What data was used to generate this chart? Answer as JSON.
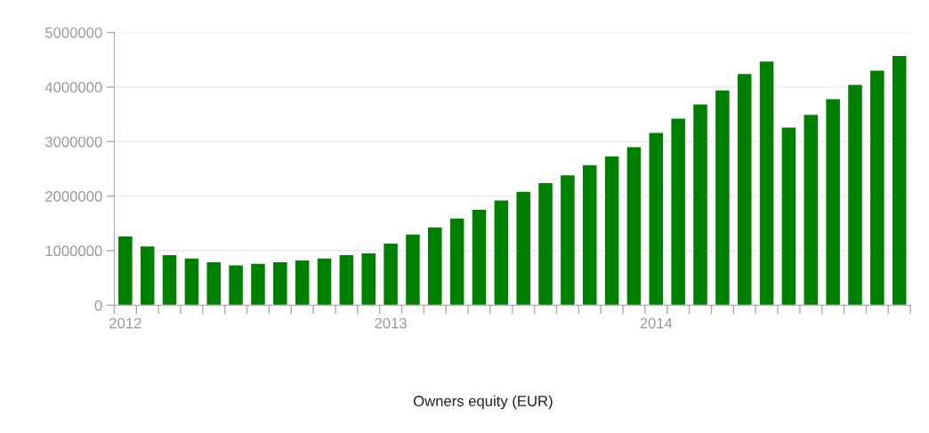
{
  "chart_data": {
    "type": "bar",
    "annotations": [
      "Owners equity (EUR)"
    ],
    "categories": [
      "2012",
      null,
      null,
      null,
      null,
      null,
      null,
      null,
      null,
      null,
      null,
      null,
      "2013",
      null,
      null,
      null,
      null,
      null,
      null,
      null,
      null,
      null,
      null,
      null,
      "2014",
      null,
      null,
      null,
      null,
      null,
      null,
      null,
      null,
      null,
      null,
      null
    ],
    "values": [
      1270000,
      1090000,
      930000,
      870000,
      800000,
      740000,
      770000,
      800000,
      830000,
      870000,
      930000,
      960000,
      1140000,
      1310000,
      1440000,
      1600000,
      1760000,
      1930000,
      2090000,
      2250000,
      2390000,
      2580000,
      2740000,
      2910000,
      3170000,
      3430000,
      3690000,
      3950000,
      4250000,
      4480000,
      3270000,
      3500000,
      3790000,
      4050000,
      4310000,
      4580000
    ],
    "color": "#008000",
    "ylim": [
      0,
      5000000
    ],
    "yticks": [
      0,
      1000000,
      2000000,
      3000000,
      4000000,
      5000000
    ],
    "grid": "y"
  }
}
